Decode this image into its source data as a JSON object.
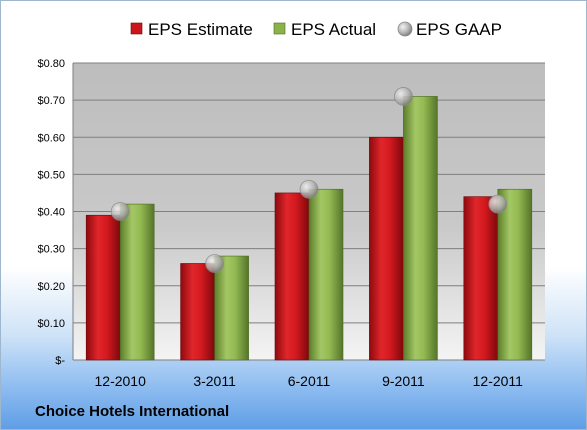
{
  "company": "Choice Hotels International",
  "chart_data": {
    "type": "bar",
    "categories": [
      "12-2010",
      "3-2011",
      "6-2011",
      "9-2011",
      "12-2011"
    ],
    "series": [
      {
        "name": "EPS Estimate",
        "kind": "bar",
        "color": "#c9151b",
        "values": [
          0.39,
          0.26,
          0.45,
          0.6,
          0.44
        ]
      },
      {
        "name": "EPS Actual",
        "kind": "bar",
        "color": "#8cb34a",
        "values": [
          0.42,
          0.28,
          0.46,
          0.71,
          0.46
        ]
      },
      {
        "name": "EPS GAAP",
        "kind": "marker",
        "color": "#a8a8a8",
        "values": [
          0.4,
          0.26,
          0.46,
          0.71,
          0.42
        ]
      }
    ],
    "ylim": [
      0,
      0.8
    ],
    "yticks": [
      0,
      0.1,
      0.2,
      0.3,
      0.4,
      0.5,
      0.6,
      0.7,
      0.8
    ],
    "ytick_labels": [
      "$-",
      "$0.10",
      "$0.20",
      "$0.30",
      "$0.40",
      "$0.50",
      "$0.60",
      "$0.70",
      "$0.80"
    ],
    "grid": true,
    "legend": "top"
  }
}
